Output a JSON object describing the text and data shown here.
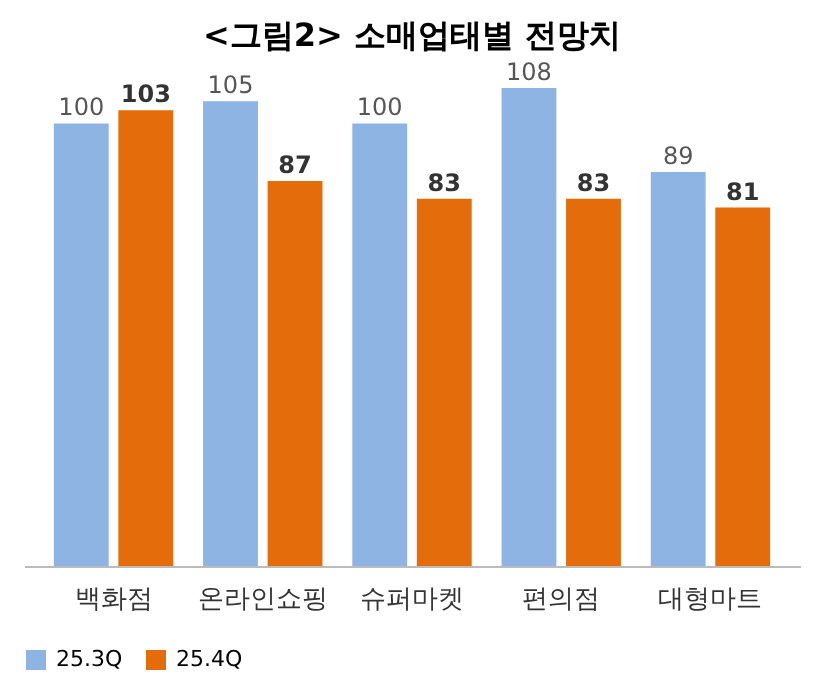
{
  "chart_data": {
    "type": "bar",
    "title": "<그림2> 소매업태별 전망치",
    "categories": [
      "백화점",
      "온라인쇼핑",
      "슈퍼마켓",
      "편의점",
      "대형마트"
    ],
    "series": [
      {
        "name": "25.3Q",
        "color": "#8db4e2",
        "values": [
          100,
          105,
          100,
          108,
          89
        ]
      },
      {
        "name": "25.4Q",
        "color": "#e46c0a",
        "values": [
          103,
          87,
          83,
          83,
          81
        ]
      }
    ],
    "data_labels": true,
    "legend": "bottom",
    "grid": false
  }
}
